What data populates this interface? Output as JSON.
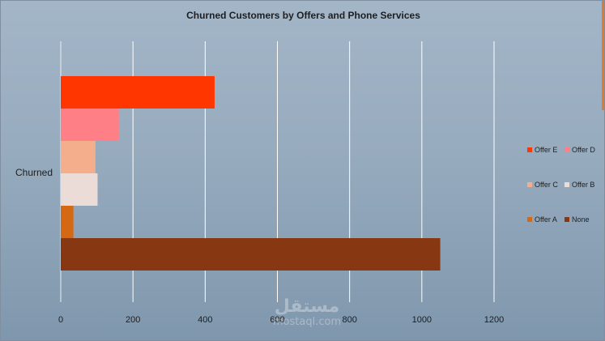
{
  "chart_data": {
    "type": "bar",
    "orientation": "horizontal",
    "title": "Churned Customers by Offers and Phone Services",
    "categories": [
      "Churned"
    ],
    "xlim": [
      0,
      1200
    ],
    "xticks": [
      "0",
      "200",
      "400",
      "600",
      "800",
      "1000",
      "1200"
    ],
    "grid": true,
    "legend_position": "right",
    "series": [
      {
        "name": "Offer E",
        "values": [
          426
        ],
        "color": "#ff3600"
      },
      {
        "name": "Offer D",
        "values": [
          161
        ],
        "color": "#ff7f86"
      },
      {
        "name": "Offer C",
        "values": [
          96
        ],
        "color": "#f4ae8c"
      },
      {
        "name": "Offer B",
        "values": [
          102
        ],
        "color": "#ebdcd7"
      },
      {
        "name": "Offer A",
        "values": [
          35
        ],
        "color": "#d56813"
      },
      {
        "name": "None",
        "values": [
          1051
        ],
        "color": "#873813"
      }
    ]
  },
  "watermark": {
    "arabic": "مستقل",
    "latin": "mostaql.com"
  }
}
